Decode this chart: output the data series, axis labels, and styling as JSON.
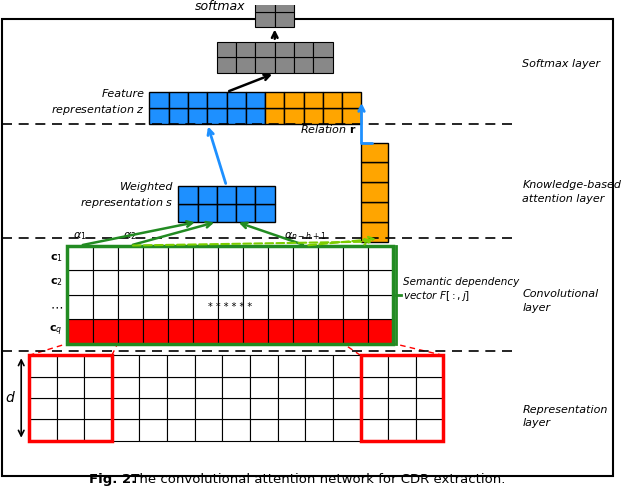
{
  "title": "Fig. 2.",
  "caption": " The convolutional attention network for CDR extraction.",
  "bg_color": "#ffffff",
  "blue_color": "#1E90FF",
  "orange_color": "#FFA500",
  "gray_color": "#888888",
  "red_color": "#FF0000",
  "green_color": "#228B22",
  "dgreen_color": "#7CCD00",
  "white_cell": "#ffffff",
  "black": "#000000",
  "layer_labels": {
    "softmax": "Softmax layer",
    "knowledge": "Knowledge-based\nattention layer",
    "conv": "Convolutional\nlayer",
    "repr": "Representation\nlayer"
  }
}
